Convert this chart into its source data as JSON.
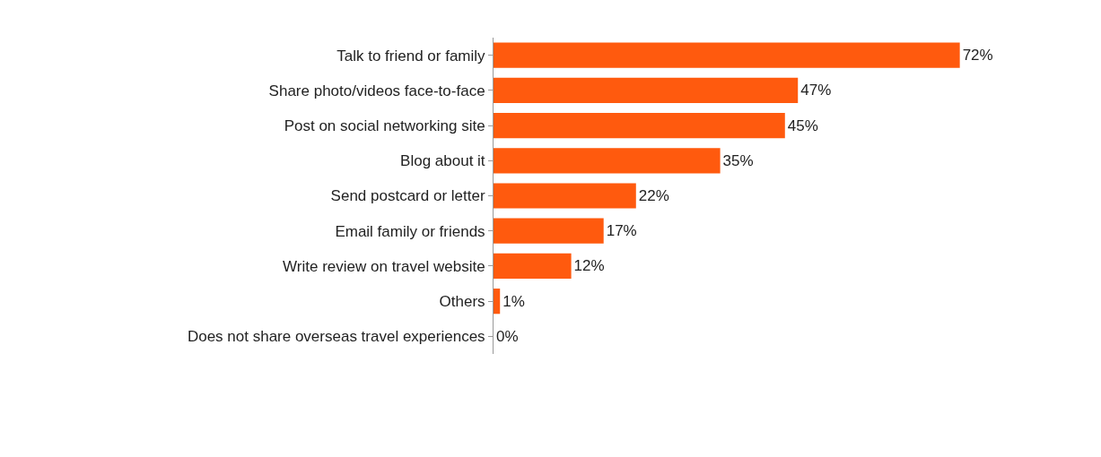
{
  "chart_data": {
    "type": "bar",
    "orientation": "horizontal",
    "categories": [
      "Talk to friend or family",
      "Share photo/videos face-to-face",
      "Post on social networking site",
      "Blog about it",
      "Send postcard or letter",
      "Email family or friends",
      "Write review on travel website",
      "Others",
      "Does not share overseas travel experiences"
    ],
    "values": [
      72,
      47,
      45,
      35,
      22,
      17,
      12,
      1,
      0
    ],
    "value_labels": [
      "72%",
      "47%",
      "45%",
      "35%",
      "22%",
      "17%",
      "12%",
      "1%",
      "0%"
    ],
    "color": "#ff5a0e",
    "legend": false,
    "tick_labels": "y"
  }
}
